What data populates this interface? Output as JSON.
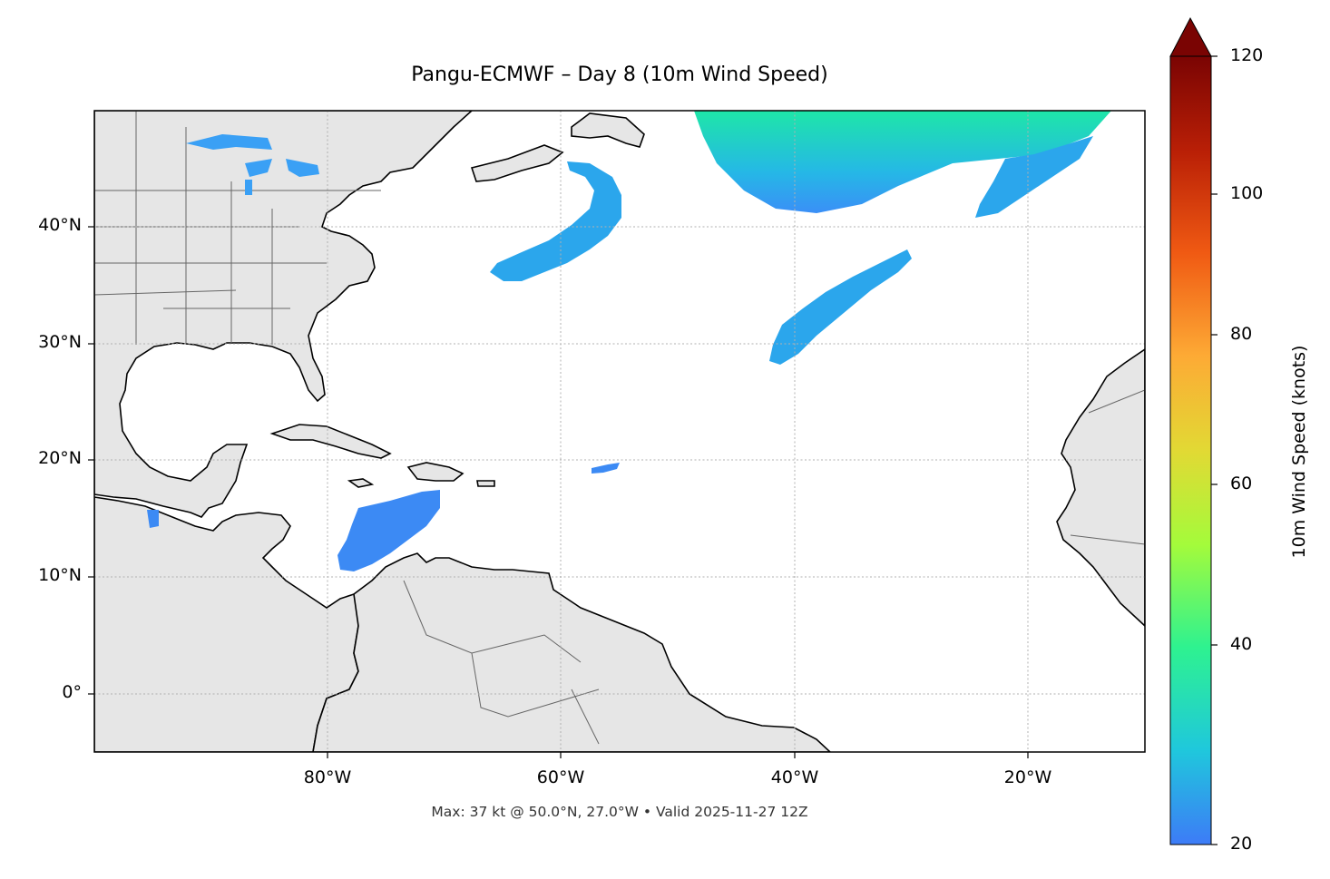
{
  "title": "Pangu-ECMWF – Day 8 (10m Wind Speed)",
  "footer": "Max: 37 kt @ 50.0°N, 27.0°W • Valid 2025-11-27 12Z",
  "x_ticks": [
    "80°W",
    "60°W",
    "40°W",
    "20°W"
  ],
  "y_ticks": [
    "40°N",
    "30°N",
    "20°N",
    "10°N",
    "0°"
  ],
  "colorbar": {
    "label": "10m Wind Speed (knots)",
    "ticks": [
      "120",
      "100",
      "80",
      "60",
      "40",
      "20"
    ],
    "colors": [
      "#3d7bf7",
      "#1fc8dc",
      "#2ef290",
      "#a4fb3b",
      "#e2d934",
      "#fdaa35",
      "#f05a13",
      "#b91f06",
      "#7a0403"
    ]
  },
  "map": {
    "extent_lon": [
      -100,
      -10
    ],
    "extent_lat": [
      -5,
      50
    ],
    "land_color": "#e6e6e6",
    "wind_color": "#3aa0f5"
  }
}
